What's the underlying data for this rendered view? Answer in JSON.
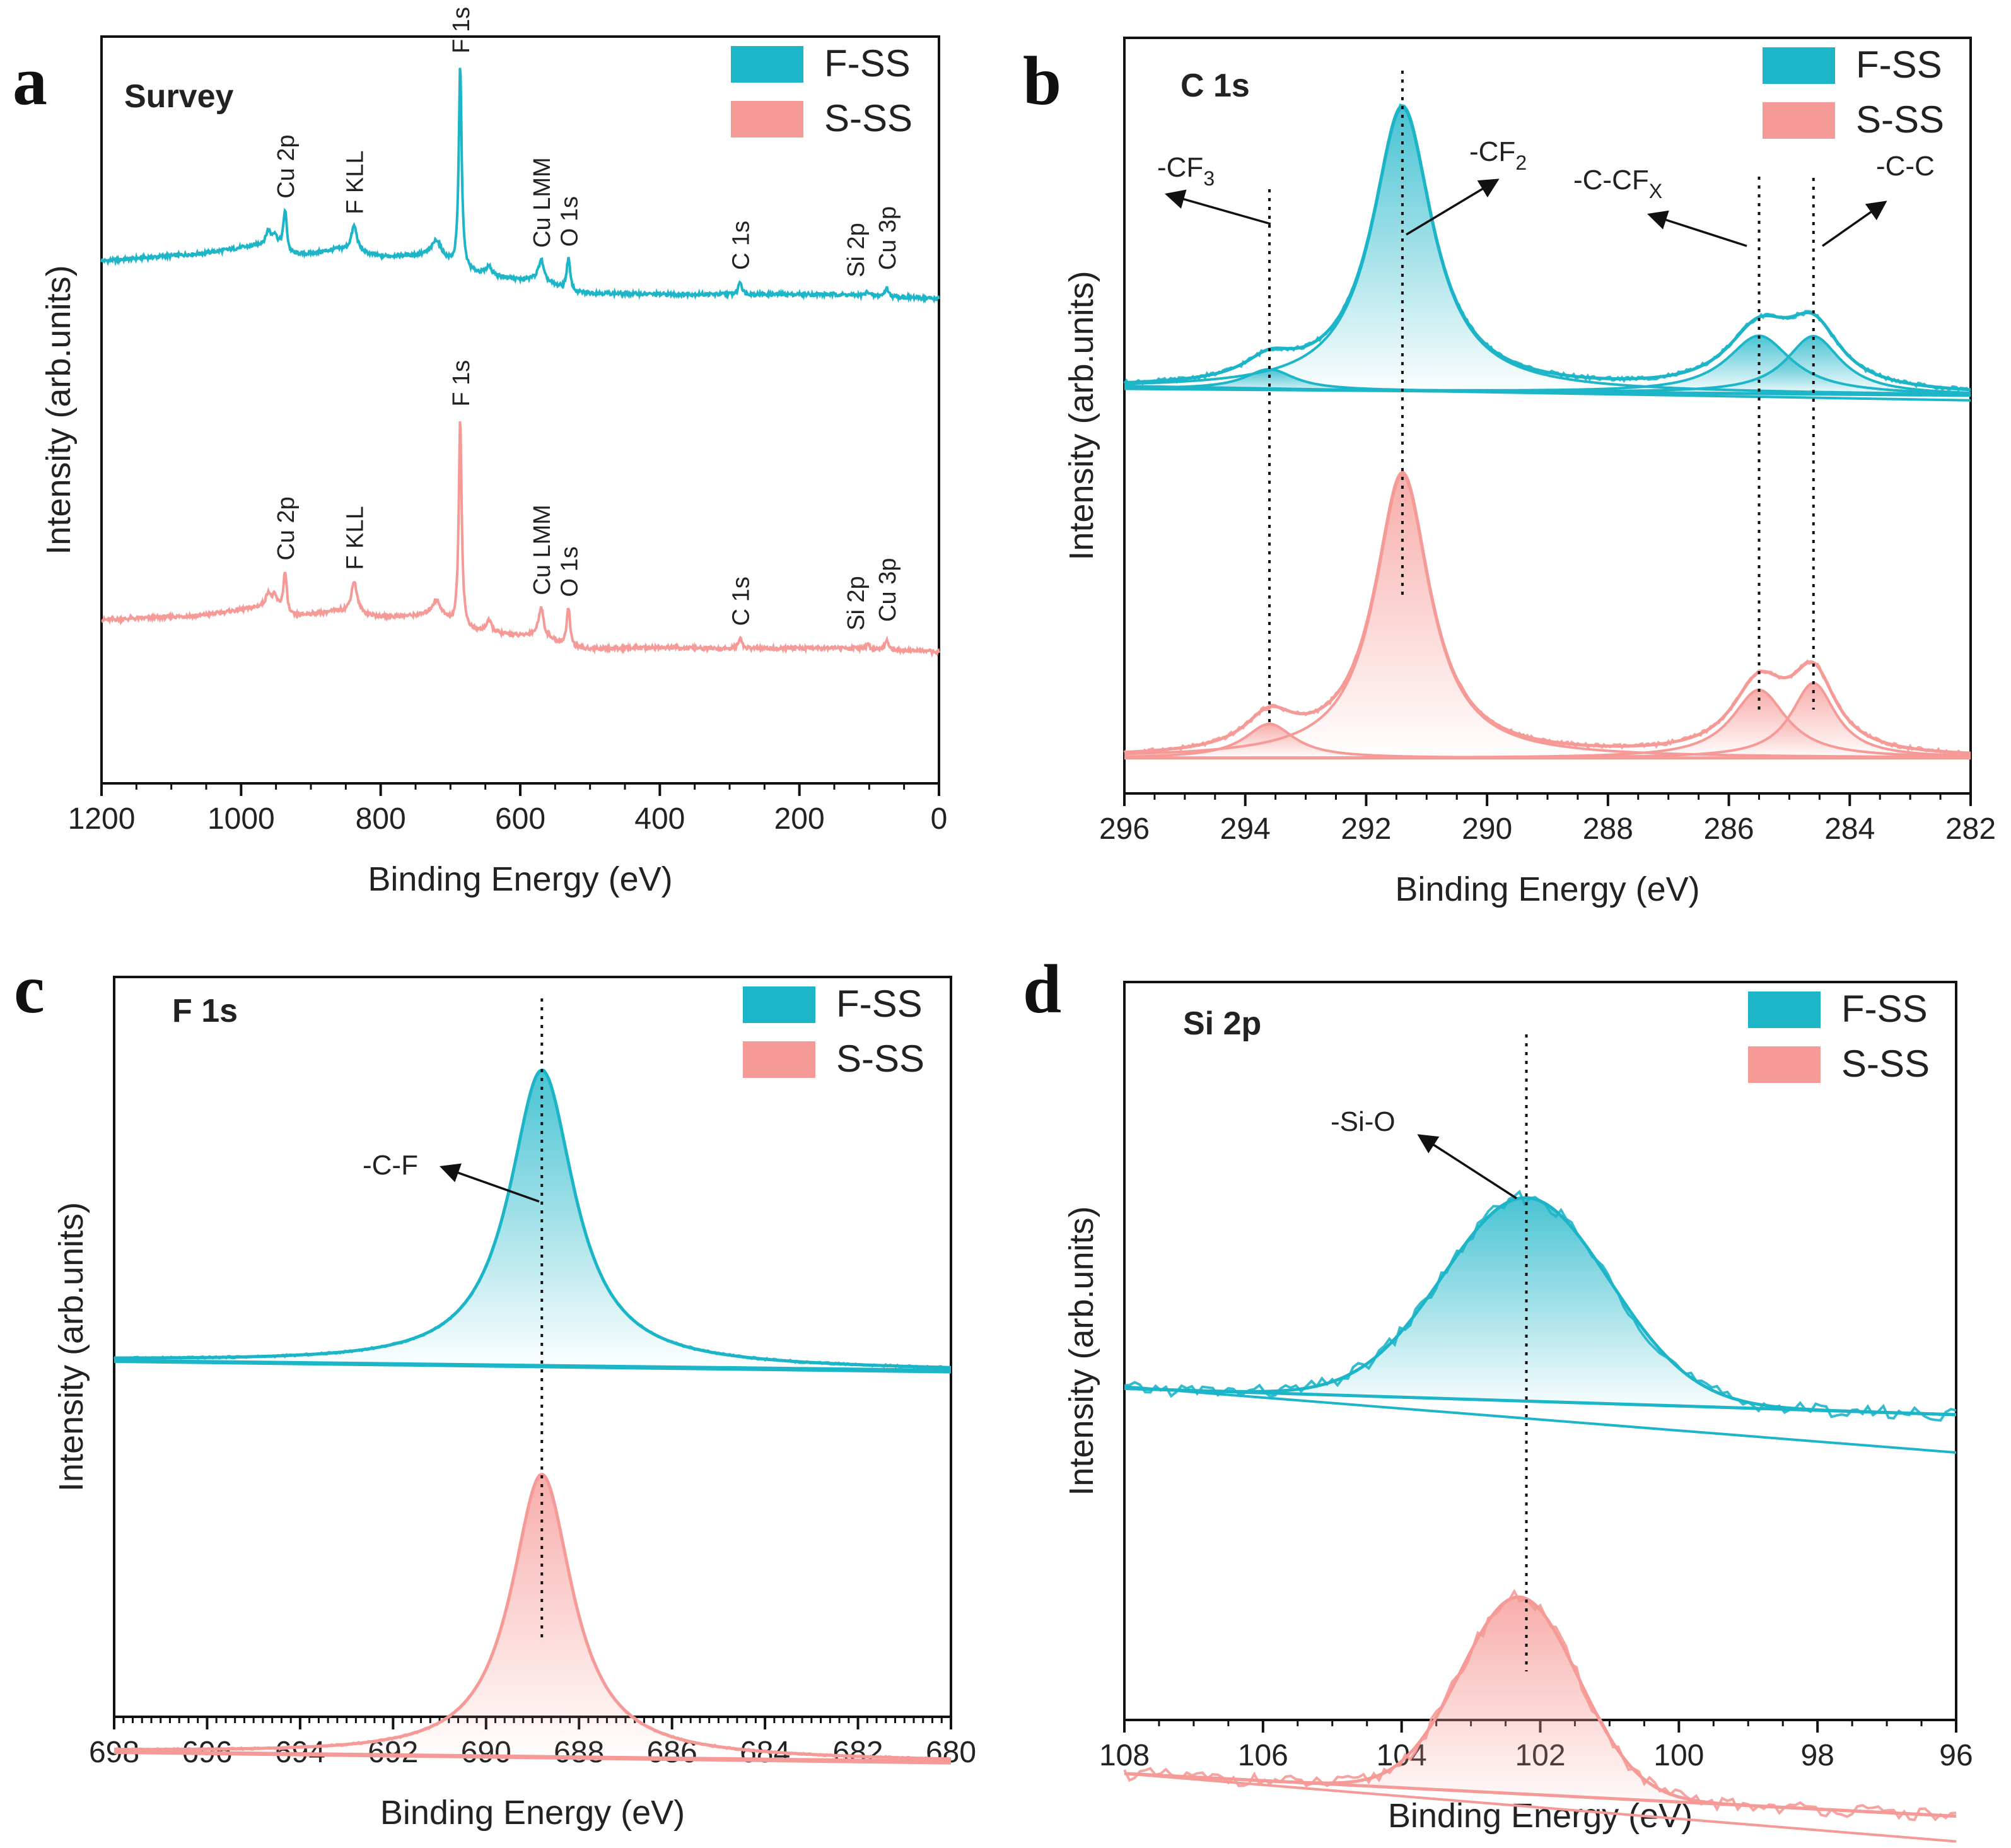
{
  "colors": {
    "fss": "#1DB5C8",
    "sss": "#F59A96",
    "frame": "#111111"
  },
  "chart_data": [
    {
      "id": "a",
      "type": "line",
      "panel_letter": "a",
      "title": "Survey",
      "xlabel": "Binding Energy (eV)",
      "ylabel": "Intensity (arb.units)",
      "xlim": [
        1200,
        0
      ],
      "xticks": [
        1200,
        1000,
        800,
        600,
        400,
        200,
        0
      ],
      "legend": [
        "F-SS",
        "S-SS"
      ],
      "series": [
        {
          "name": "F-SS",
          "base": [
            [
              1200,
              0.62
            ],
            [
              1060,
              0.645
            ],
            [
              970,
              0.675
            ],
            [
              945,
              0.665
            ],
            [
              930,
              0.64
            ],
            [
              900,
              0.645
            ],
            [
              860,
              0.66
            ],
            [
              800,
              0.635
            ],
            [
              720,
              0.64
            ],
            [
              695,
              0.6
            ],
            [
              670,
              0.58
            ],
            [
              600,
              0.555
            ],
            [
              575,
              0.56
            ],
            [
              545,
              0.53
            ],
            [
              520,
              0.51
            ],
            [
              400,
              0.505
            ],
            [
              300,
              0.505
            ],
            [
              150,
              0.505
            ],
            [
              0,
              0.49
            ]
          ],
          "peaks": [
            [
              937,
              0.14,
              3
            ],
            [
              961,
              0.05,
              4
            ],
            [
              952,
              0.04,
              4
            ],
            [
              838,
              0.09,
              5
            ],
            [
              686,
              0.7,
              2.5
            ],
            [
              720,
              0.05,
              8
            ],
            [
              645,
              0.03,
              5
            ],
            [
              570,
              0.07,
              4
            ],
            [
              531,
              0.11,
              3
            ],
            [
              285,
              0.045,
              3
            ],
            [
              102,
              0.015,
              3
            ],
            [
              75,
              0.03,
              3
            ]
          ]
        },
        {
          "name": "S-SS",
          "base": [
            [
              1200,
              0.6
            ],
            [
              1060,
              0.615
            ],
            [
              970,
              0.645
            ],
            [
              945,
              0.635
            ],
            [
              930,
              0.61
            ],
            [
              900,
              0.62
            ],
            [
              860,
              0.63
            ],
            [
              800,
              0.61
            ],
            [
              720,
              0.615
            ],
            [
              695,
              0.58
            ],
            [
              670,
              0.56
            ],
            [
              600,
              0.545
            ],
            [
              575,
              0.55
            ],
            [
              545,
              0.52
            ],
            [
              520,
              0.5
            ],
            [
              400,
              0.505
            ],
            [
              300,
              0.5
            ],
            [
              150,
              0.505
            ],
            [
              0,
              0.49
            ]
          ],
          "peaks": [
            [
              937,
              0.14,
              3
            ],
            [
              961,
              0.05,
              4
            ],
            [
              952,
              0.04,
              4
            ],
            [
              838,
              0.11,
              5
            ],
            [
              686,
              0.72,
              2.5
            ],
            [
              720,
              0.05,
              8
            ],
            [
              645,
              0.04,
              5
            ],
            [
              570,
              0.1,
              4
            ],
            [
              531,
              0.13,
              3
            ],
            [
              285,
              0.04,
              3
            ],
            [
              102,
              0.015,
              3
            ],
            [
              75,
              0.035,
              3
            ]
          ]
        }
      ],
      "annotations": [
        {
          "label": "Cu 2p",
          "x": 937,
          "series": 0
        },
        {
          "label": "F KLL",
          "x": 838,
          "series": 0
        },
        {
          "label": "F 1s",
          "x": 686,
          "series": 0
        },
        {
          "label": "Cu LMM",
          "x": 570,
          "series": 0
        },
        {
          "label": "O 1s",
          "x": 531,
          "series": 0
        },
        {
          "label": "C 1s",
          "x": 285,
          "series": 0
        },
        {
          "label": "Si 2p",
          "x": 120,
          "series": 0
        },
        {
          "label": "Cu 3p",
          "x": 75,
          "series": 0
        },
        {
          "label": "Cu 2p",
          "x": 937,
          "series": 1
        },
        {
          "label": "F KLL",
          "x": 838,
          "series": 1
        },
        {
          "label": "F 1s",
          "x": 686,
          "series": 1
        },
        {
          "label": "Cu LMM",
          "x": 570,
          "series": 1
        },
        {
          "label": "O 1s",
          "x": 531,
          "series": 1
        },
        {
          "label": "C 1s",
          "x": 285,
          "series": 1
        },
        {
          "label": "Si 2p",
          "x": 120,
          "series": 1
        },
        {
          "label": "Cu 3p",
          "x": 75,
          "series": 1
        }
      ]
    },
    {
      "id": "b",
      "type": "line",
      "panel_letter": "b",
      "title": "C 1s",
      "xlabel": "Binding Energy (eV)",
      "ylabel": "Intensity (arb.units)",
      "xlim": [
        296,
        282
      ],
      "xticks": [
        296,
        294,
        292,
        290,
        288,
        286,
        284,
        282
      ],
      "legend": [
        "F-SS",
        "S-SS"
      ],
      "series": [
        {
          "name": "F-SS",
          "base": [
            [
              296,
              0.1
            ],
            [
              282,
              0.08
            ]
          ],
          "components": [
            [
              293.6,
              0.06,
              0.5
            ],
            [
              291.4,
              0.83,
              0.6
            ],
            [
              285.5,
              0.17,
              0.65
            ],
            [
              284.6,
              0.17,
              0.55
            ]
          ]
        },
        {
          "name": "S-SS",
          "base": [
            [
              296,
              0.08
            ],
            [
              282,
              0.08
            ]
          ],
          "components": [
            [
              293.6,
              0.1,
              0.5
            ],
            [
              291.4,
              0.83,
              0.55
            ],
            [
              285.5,
              0.2,
              0.55
            ],
            [
              284.6,
              0.22,
              0.45
            ]
          ]
        }
      ],
      "vlines": [
        293.6,
        291.4,
        285.5,
        284.6
      ],
      "annotations": [
        {
          "label": "-CF",
          "sub": "3"
        },
        {
          "label": "-CF",
          "sub": "2"
        },
        {
          "label": "-C-CF",
          "sub": "X"
        },
        {
          "label": "-C-C",
          "sub": ""
        }
      ]
    },
    {
      "id": "c",
      "type": "line",
      "panel_letter": "c",
      "title": "F 1s",
      "xlabel": "Binding Energy (eV)",
      "ylabel": "Intensity (arb.units)",
      "xlim": [
        698,
        680
      ],
      "xticks": [
        698,
        696,
        694,
        692,
        690,
        688,
        686,
        684,
        682,
        680
      ],
      "legend": [
        "F-SS",
        "S-SS"
      ],
      "series": [
        {
          "name": "F-SS",
          "base": [
            [
              698,
              0.1
            ],
            [
              680,
              0.07
            ]
          ],
          "components": [
            [
              688.8,
              0.9,
              0.85
            ]
          ]
        },
        {
          "name": "S-SS",
          "base": [
            [
              698,
              0.1
            ],
            [
              680,
              0.07
            ]
          ],
          "components": [
            [
              688.8,
              0.86,
              0.8
            ]
          ]
        }
      ],
      "vlines": [
        688.8
      ],
      "annotations": [
        {
          "label": "-C-F",
          "sub": ""
        }
      ]
    },
    {
      "id": "d",
      "type": "line",
      "panel_letter": "d",
      "title": "Si 2p",
      "xlabel": "Binding Energy (eV)",
      "ylabel": "Intensity (arb.units)",
      "xlim": [
        108,
        96
      ],
      "xticks": [
        108,
        106,
        104,
        102,
        100,
        98,
        96
      ],
      "legend": [
        "F-SS",
        "S-SS"
      ],
      "series": [
        {
          "name": "F-SS",
          "base": [
            [
              108,
              0.28
            ],
            [
              96,
              0.2
            ]
          ],
          "components": [
            [
              102.2,
              0.62,
              1.2
            ]
          ]
        },
        {
          "name": "S-SS",
          "base": [
            [
              108,
              0.25
            ],
            [
              96,
              0.12
            ]
          ],
          "components": [
            [
              102.3,
              0.6,
              0.85
            ]
          ]
        }
      ],
      "vlines": [
        102.2
      ],
      "annotations": [
        {
          "label": "-Si-O",
          "sub": ""
        }
      ]
    }
  ]
}
